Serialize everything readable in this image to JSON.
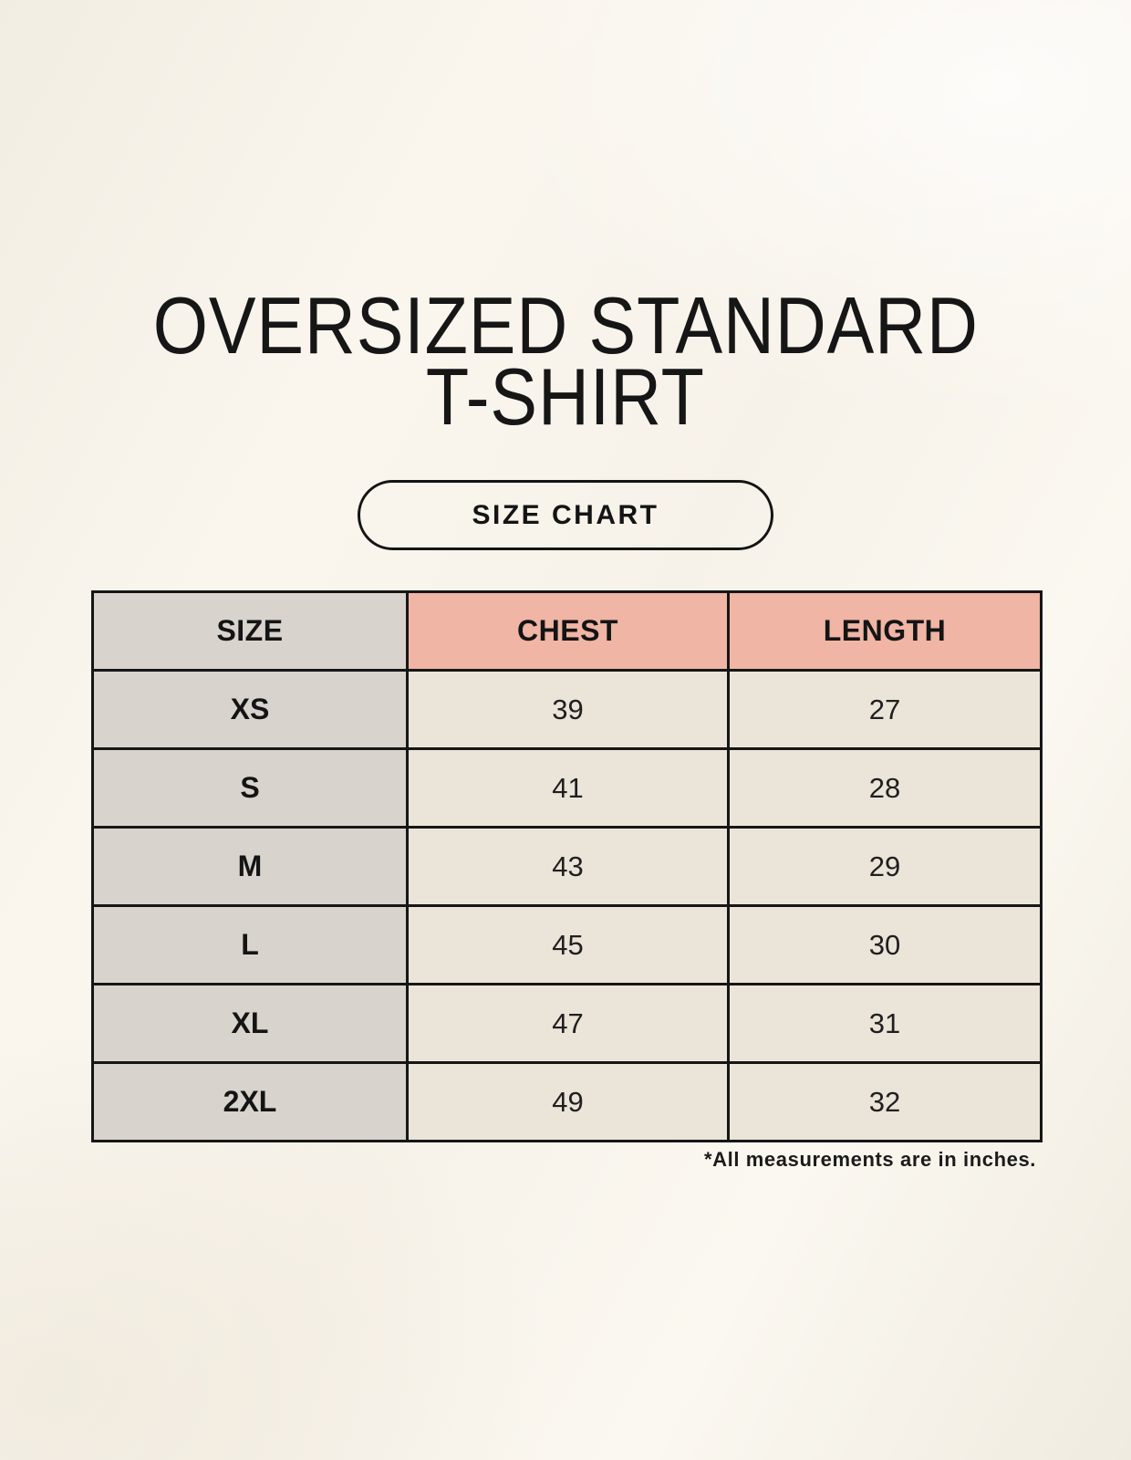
{
  "header": {
    "title_line1": "OVERSIZED STANDARD",
    "title_line2": "T-SHIRT",
    "size_chart_label": "SIZE CHART"
  },
  "chart_data": {
    "type": "table",
    "title": "OVERSIZED STANDARD T-SHIRT",
    "subtitle": "SIZE CHART",
    "columns": [
      "SIZE",
      "CHEST",
      "LENGTH"
    ],
    "rows": [
      [
        "XS",
        39,
        27
      ],
      [
        "S",
        41,
        28
      ],
      [
        "M",
        43,
        29
      ],
      [
        "L",
        45,
        30
      ],
      [
        "XL",
        47,
        31
      ],
      [
        "2XL",
        49,
        32
      ]
    ],
    "units": "inches"
  },
  "footer": {
    "note": "*All measurements are in inches."
  },
  "colors": {
    "background": "#f7f3ea",
    "size_column": "#d9d3cd",
    "measure_header": "#f0b5a4",
    "value_cell": "#ebe4d9",
    "border": "#161616",
    "text": "#1b1b1b"
  }
}
